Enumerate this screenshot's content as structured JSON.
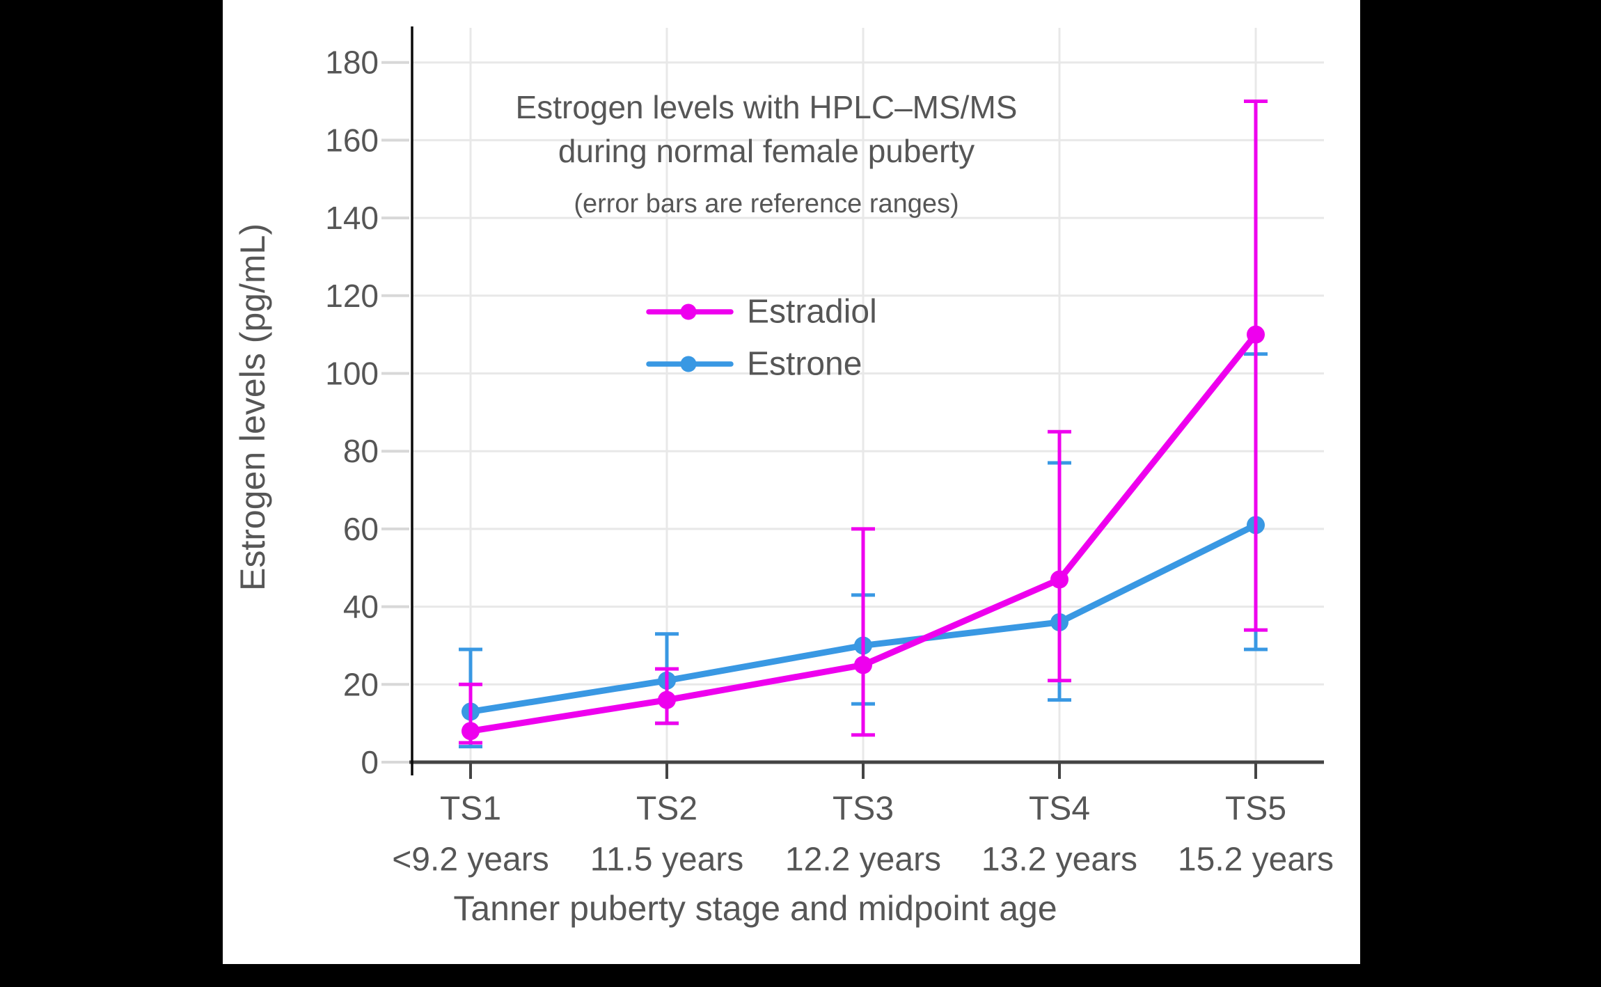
{
  "window": {
    "background": "#000000",
    "canvas_background": "#ffffff"
  },
  "colors": {
    "grid": "#e8e8e8",
    "tick_dash": "#d8d8d8",
    "x_axis": "#444444",
    "y_axis": "#0a0a0a",
    "text": "#565656",
    "estradiol": "#ee00ee",
    "estrone": "#3998e3"
  },
  "chart_data": {
    "type": "line",
    "title": "Estrogen levels with HPLC–MS/MS during normal female puberty",
    "title_lines": [
      "Estrogen levels with HPLC–MS/MS",
      "during normal female puberty"
    ],
    "subtitle": "(error bars are reference ranges)",
    "xlabel": "Tanner puberty stage and midpoint age",
    "ylabel": "Estrogen levels (pg/mL)",
    "categories": [
      "TS1",
      "TS2",
      "TS3",
      "TS4",
      "TS5"
    ],
    "category_ages": [
      "<9.2 years",
      "11.5 years",
      "12.2 years",
      "13.2 years",
      "15.2 years"
    ],
    "ylim": [
      0,
      180
    ],
    "ytick_step": 20,
    "yticks": [
      0,
      20,
      40,
      60,
      80,
      100,
      120,
      140,
      160,
      180
    ],
    "grid": true,
    "legend_position": "upper-center",
    "error_bars": "reference ranges",
    "series": [
      {
        "name": "Estradiol",
        "color": "#ee00ee",
        "values": [
          8,
          16,
          25,
          47,
          110
        ],
        "error_low": [
          5,
          10,
          7,
          21,
          34
        ],
        "error_high": [
          20,
          24,
          60,
          85,
          170
        ]
      },
      {
        "name": "Estrone",
        "color": "#3998e3",
        "values": [
          13,
          21,
          30,
          36,
          61
        ],
        "error_low": [
          4,
          10,
          15,
          16,
          29
        ],
        "error_high": [
          29,
          33,
          43,
          77,
          105
        ]
      }
    ]
  }
}
